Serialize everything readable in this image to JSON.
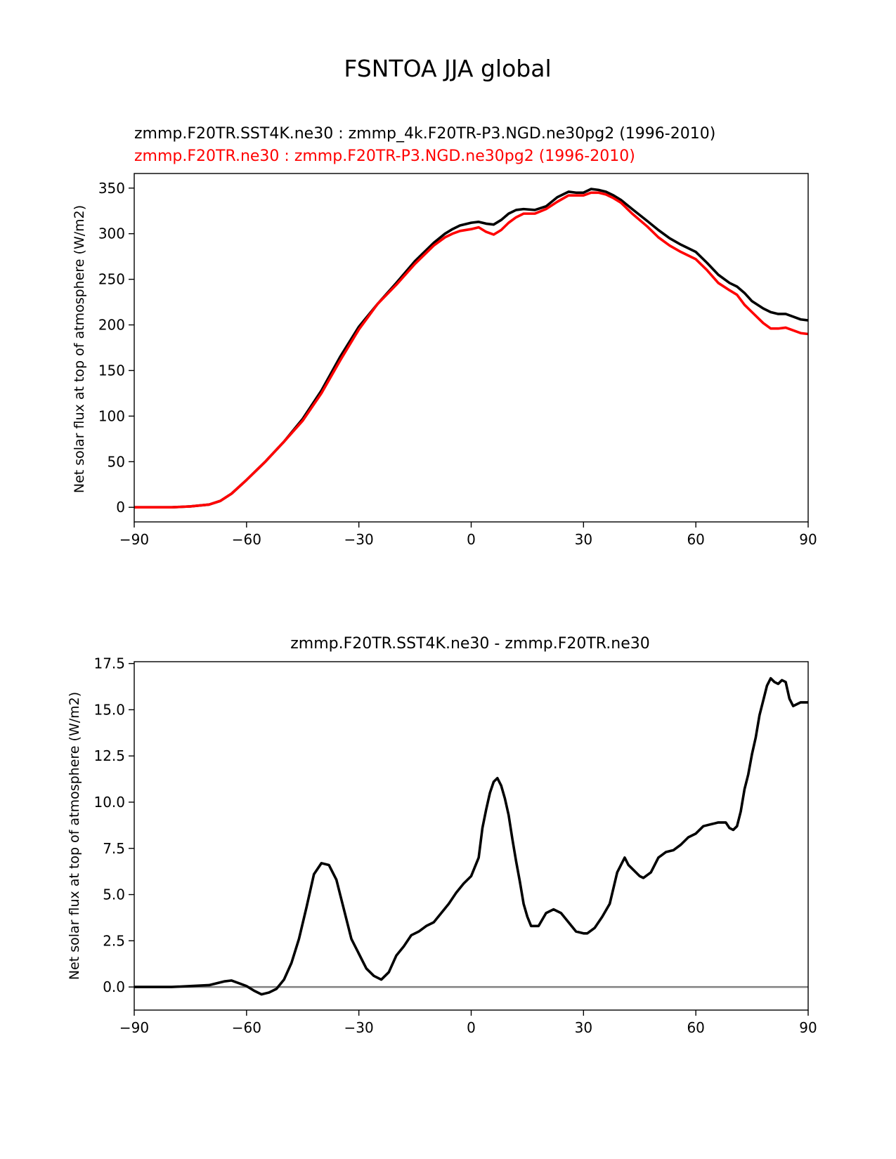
{
  "figure_title": "FSNTOA JJA global",
  "chart_data": [
    {
      "type": "line",
      "title_lines": [
        {
          "text": "zmmp.F20TR.SST4K.ne30 : zmmp_4k.F20TR-P3.NGD.ne30pg2 (1996-2010)",
          "color": "#000000"
        },
        {
          "text": "zmmp.F20TR.ne30 : zmmp.F20TR-P3.NGD.ne30pg2 (1996-2010)",
          "color": "#ff0000"
        }
      ],
      "xlabel": "",
      "ylabel": "Net solar flux at top of atmosphere (W/m2)",
      "xlim": [
        -90,
        90
      ],
      "ylim": [
        -16,
        366
      ],
      "xticks": [
        -90,
        -60,
        -30,
        0,
        30,
        60,
        90
      ],
      "xtick_labels": [
        "−90",
        "−60",
        "−30",
        "0",
        "30",
        "60",
        "90"
      ],
      "yticks": [
        0,
        50,
        100,
        150,
        200,
        250,
        300,
        350
      ],
      "ytick_labels": [
        "0",
        "50",
        "100",
        "150",
        "200",
        "250",
        "300",
        "350"
      ],
      "series": [
        {
          "name": "zmmp.F20TR.SST4K.ne30 : zmmp_4k.F20TR-P3.NGD.ne30pg2 (1996-2010)",
          "color": "#000000",
          "x": [
            -90,
            -80,
            -75,
            -70,
            -67,
            -64,
            -60,
            -55,
            -50,
            -45,
            -40,
            -35,
            -30,
            -25,
            -20,
            -15,
            -10,
            -7,
            -5,
            -3,
            0,
            2,
            4,
            6,
            8,
            10,
            12,
            14,
            17,
            20,
            23,
            26,
            28,
            30,
            32,
            34,
            36,
            38,
            40,
            43,
            47,
            50,
            53,
            56,
            60,
            63,
            66,
            69,
            71,
            73,
            75,
            78,
            80,
            82,
            84,
            86,
            88,
            90
          ],
          "y": [
            0,
            0,
            1,
            3,
            7,
            15,
            30,
            50,
            72,
            97,
            128,
            165,
            198,
            223,
            246,
            270,
            290,
            300,
            305,
            309,
            312,
            313,
            311,
            310,
            315,
            322,
            326,
            327,
            326,
            330,
            340,
            346,
            345,
            345,
            349,
            348,
            346,
            342,
            337,
            327,
            314,
            304,
            295,
            288,
            280,
            268,
            255,
            246,
            242,
            235,
            226,
            218,
            214,
            212,
            212,
            209,
            206,
            205
          ]
        },
        {
          "name": "zmmp.F20TR.ne30 : zmmp.F20TR-P3.NGD.ne30pg2 (1996-2010)",
          "color": "#ff0000",
          "x": [
            -90,
            -80,
            -75,
            -70,
            -67,
            -64,
            -60,
            -55,
            -50,
            -45,
            -40,
            -35,
            -30,
            -25,
            -20,
            -15,
            -10,
            -7,
            -5,
            -3,
            0,
            2,
            4,
            6,
            8,
            10,
            12,
            14,
            17,
            20,
            23,
            26,
            28,
            30,
            32,
            34,
            36,
            38,
            40,
            43,
            47,
            50,
            53,
            56,
            60,
            63,
            66,
            69,
            71,
            73,
            75,
            78,
            80,
            82,
            84,
            86,
            88,
            90
          ],
          "y": [
            0,
            0,
            1,
            3,
            7,
            15,
            30,
            50,
            72,
            95,
            125,
            161,
            195,
            223,
            244,
            267,
            287,
            296,
            300,
            303,
            305,
            307,
            302,
            299,
            304,
            312,
            318,
            322,
            322,
            327,
            335,
            342,
            342,
            342,
            345,
            345,
            343,
            339,
            334,
            322,
            308,
            296,
            287,
            280,
            272,
            260,
            246,
            238,
            233,
            222,
            214,
            202,
            196,
            196,
            197,
            194,
            191,
            190
          ]
        }
      ]
    },
    {
      "type": "line",
      "title": "zmmp.F20TR.SST4K.ne30 - zmmp.F20TR.ne30",
      "xlabel": "",
      "ylabel": "Net solar flux at top of atmosphere (W/m2)",
      "xlim": [
        -90,
        90
      ],
      "ylim": [
        -1.25,
        17.6
      ],
      "xticks": [
        -90,
        -60,
        -30,
        0,
        30,
        60,
        90
      ],
      "xtick_labels": [
        "−90",
        "−60",
        "−30",
        "0",
        "30",
        "60",
        "90"
      ],
      "yticks": [
        0.0,
        2.5,
        5.0,
        7.5,
        10.0,
        12.5,
        15.0,
        17.5
      ],
      "ytick_labels": [
        "0.0",
        "2.5",
        "5.0",
        "7.5",
        "10.0",
        "12.5",
        "15.0",
        "17.5"
      ],
      "reference_line": {
        "y": 0,
        "color": "#808080"
      },
      "series": [
        {
          "name": "zmmp.F20TR.SST4K.ne30 - zmmp.F20TR.ne30",
          "color": "#000000",
          "x": [
            -90,
            -80,
            -75,
            -70,
            -66,
            -64,
            -62,
            -60,
            -58,
            -56,
            -54,
            -52,
            -50,
            -48,
            -46,
            -44,
            -42,
            -40,
            -38,
            -36,
            -35,
            -34,
            -32,
            -30,
            -28,
            -26,
            -24,
            -22,
            -20,
            -18,
            -16,
            -14,
            -12,
            -10,
            -8,
            -6,
            -4,
            -2,
            0,
            1,
            2,
            3,
            4,
            5,
            6,
            7,
            8,
            9,
            10,
            11,
            12,
            13,
            14,
            15,
            16,
            18,
            20,
            22,
            24,
            26,
            28,
            30,
            31,
            33,
            35,
            37,
            39,
            41,
            42,
            43,
            45,
            46,
            48,
            50,
            52,
            54,
            56,
            58,
            60,
            62,
            64,
            66,
            68,
            69,
            70,
            71,
            72,
            73,
            74,
            75,
            76,
            77,
            78,
            79,
            80,
            81,
            82,
            83,
            84,
            85,
            86,
            88,
            90
          ],
          "y": [
            0,
            0,
            0.05,
            0.1,
            0.3,
            0.35,
            0.2,
            0.05,
            -0.2,
            -0.4,
            -0.3,
            -0.1,
            0.4,
            1.3,
            2.6,
            4.3,
            6.1,
            6.7,
            6.6,
            5.8,
            5.0,
            4.2,
            2.6,
            1.8,
            1.0,
            0.6,
            0.4,
            0.8,
            1.7,
            2.2,
            2.8,
            3.0,
            3.3,
            3.5,
            4.0,
            4.5,
            5.1,
            5.6,
            6.0,
            6.5,
            7.0,
            8.6,
            9.6,
            10.5,
            11.1,
            11.3,
            10.9,
            10.2,
            9.3,
            8.0,
            6.8,
            5.7,
            4.5,
            3.8,
            3.3,
            3.3,
            4.0,
            4.2,
            4.0,
            3.5,
            3.0,
            2.9,
            2.9,
            3.2,
            3.8,
            4.5,
            6.2,
            7.0,
            6.6,
            6.4,
            6.0,
            5.9,
            6.2,
            7.0,
            7.3,
            7.4,
            7.7,
            8.1,
            8.3,
            8.7,
            8.8,
            8.9,
            8.9,
            8.6,
            8.5,
            8.7,
            9.5,
            10.7,
            11.5,
            12.6,
            13.5,
            14.7,
            15.5,
            16.3,
            16.7,
            16.5,
            16.4,
            16.6,
            16.5,
            15.6,
            15.2,
            15.4,
            15.4
          ]
        }
      ]
    }
  ]
}
